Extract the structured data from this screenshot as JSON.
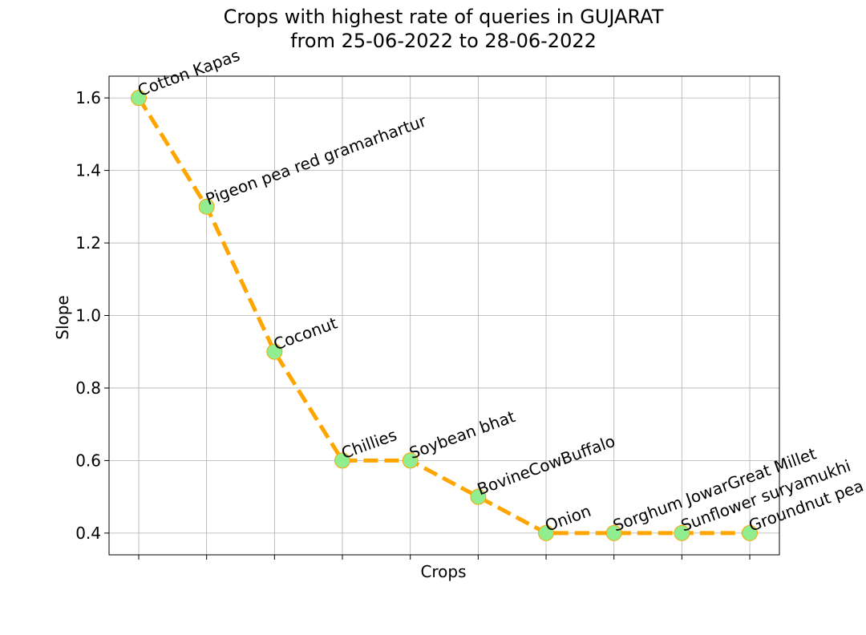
{
  "chart_data": {
    "type": "line",
    "title_line1": "Crops with highest rate of queries in GUJARAT",
    "title_line2": "from 25-06-2022 to 28-06-2022",
    "xlabel": "Crops",
    "ylabel": "Slope",
    "categories": [
      "Cotton Kapas",
      "Pigeon pea red gramarhartur",
      "Coconut",
      "Chillies",
      "Soybean bhat",
      "BovineCowBuffalo",
      "Onion",
      "Sorghum JowarGreat Millet",
      "Sunflower suryamukhi",
      "Groundnut pea nut mungphalli"
    ],
    "values": [
      1.6,
      1.3,
      0.9,
      0.6,
      0.6,
      0.5,
      0.4,
      0.4,
      0.4,
      0.4
    ],
    "ylim": [
      0.34,
      1.66
    ],
    "yticks": [
      0.4,
      0.6,
      0.8,
      1.0,
      1.2,
      1.4,
      1.6
    ],
    "ytick_labels": [
      "0.4",
      "0.6",
      "0.8",
      "1.0",
      "1.2",
      "1.4",
      "1.6"
    ],
    "grid": true,
    "line_color": "#ffa500",
    "line_style": "dashed",
    "marker_color": "#90ee90",
    "marker_edge_color": "#ffa500"
  }
}
